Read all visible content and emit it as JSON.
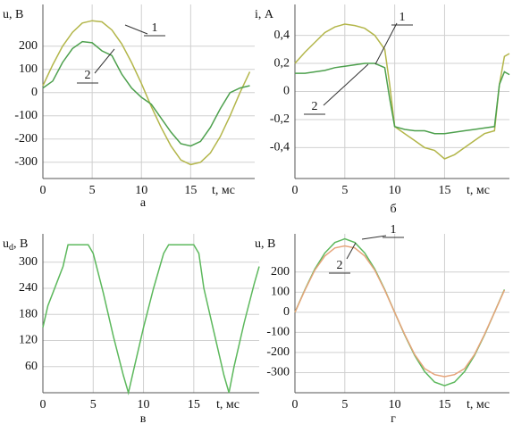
{
  "chart_data": [
    {
      "type": "line",
      "ylabel": "u, В",
      "xlabel": "t, мс",
      "caption": "а",
      "x": [
        0,
        1,
        2,
        3,
        4,
        5,
        6,
        7,
        8,
        9,
        10,
        11,
        12,
        13,
        14,
        15,
        16,
        17,
        18,
        19,
        20,
        21
      ],
      "series": [
        {
          "name": "1",
          "color": "#b3b64a",
          "values": [
            30,
            120,
            200,
            260,
            300,
            310,
            305,
            270,
            210,
            130,
            40,
            -60,
            -150,
            -230,
            -290,
            -310,
            -300,
            -260,
            -190,
            -100,
            0,
            90
          ]
        },
        {
          "name": "2",
          "color": "#4da04d",
          "values": [
            20,
            50,
            130,
            190,
            220,
            215,
            180,
            160,
            80,
            20,
            -20,
            -50,
            -110,
            -170,
            -220,
            -230,
            -210,
            -150,
            -70,
            0,
            20,
            30
          ]
        }
      ],
      "xlim": [
        0,
        21.5
      ],
      "xticks": [
        0,
        5,
        10,
        15
      ],
      "ylim": [
        -370,
        380
      ],
      "yticks": [
        -300,
        -200,
        -100,
        0,
        100,
        200
      ],
      "grid": true
    },
    {
      "type": "line",
      "ylabel": "i, А",
      "xlabel": "t, мс",
      "caption": "б",
      "x": [
        0,
        1,
        2,
        3,
        4,
        5,
        6,
        7,
        8,
        9,
        9.5,
        10,
        11,
        12,
        13,
        14,
        15,
        16,
        17,
        18,
        19,
        20,
        20.5,
        21,
        21.5
      ],
      "series": [
        {
          "name": "1",
          "color": "#b3b64a",
          "values": [
            0.2,
            0.28,
            0.35,
            0.42,
            0.46,
            0.48,
            0.47,
            0.45,
            0.4,
            0.3,
            0.05,
            -0.25,
            -0.3,
            -0.35,
            -0.4,
            -0.42,
            -0.48,
            -0.45,
            -0.4,
            -0.35,
            -0.3,
            -0.28,
            0.05,
            0.25,
            0.27
          ]
        },
        {
          "name": "2",
          "color": "#4da04d",
          "values": [
            0.13,
            0.13,
            0.14,
            0.15,
            0.17,
            0.18,
            0.19,
            0.2,
            0.2,
            0.17,
            -0.05,
            -0.25,
            -0.27,
            -0.28,
            -0.28,
            -0.3,
            -0.3,
            -0.29,
            -0.28,
            -0.27,
            -0.26,
            -0.25,
            0.05,
            0.14,
            0.12
          ]
        }
      ],
      "xlim": [
        0,
        21.5
      ],
      "xticks": [
        0,
        5,
        10,
        15
      ],
      "ylim": [
        -0.62,
        0.62
      ],
      "yticks": [
        {
          "value": -0.4,
          "label": "-0,4"
        },
        {
          "value": -0.2,
          "label": "-0,2"
        },
        0,
        {
          "value": 0.2,
          "label": "0,2"
        },
        {
          "value": 0.4,
          "label": "0,4"
        }
      ],
      "grid": true
    },
    {
      "type": "line",
      "ylabel": "u",
      "ylabel_subscript": "d",
      "ylabel_unit": ", В",
      "xlabel": "t, мс",
      "caption": "в",
      "x": [
        0,
        0.5,
        1,
        2,
        2.5,
        4.5,
        5,
        6,
        7,
        8,
        8.5,
        9,
        10,
        11,
        12,
        12.5,
        15,
        15.5,
        16,
        17,
        18,
        18.5,
        19,
        20,
        21,
        21.5
      ],
      "series": [
        {
          "color": "#5cb85c",
          "values": [
            150,
            200,
            230,
            290,
            340,
            340,
            320,
            230,
            130,
            40,
            0,
            50,
            150,
            240,
            320,
            340,
            340,
            320,
            240,
            140,
            40,
            0,
            60,
            160,
            250,
            290
          ]
        }
      ],
      "xlim": [
        0,
        21.5
      ],
      "xticks": [
        0,
        5,
        10,
        15
      ],
      "ylim": [
        0,
        365
      ],
      "yticks": [
        60,
        120,
        180,
        240,
        300
      ],
      "grid": true
    },
    {
      "type": "line",
      "ylabel": "u, В",
      "xlabel": "t, мс",
      "caption": "г",
      "x": [
        0,
        1,
        2,
        3,
        4,
        5,
        6,
        7,
        8,
        9,
        10,
        11,
        12,
        13,
        14,
        15,
        16,
        17,
        18,
        19,
        20,
        21
      ],
      "series": [
        {
          "name": "1",
          "color": "#5cb85c",
          "values": [
            0,
            113,
            215,
            295,
            347,
            365,
            347,
            295,
            215,
            113,
            0,
            -113,
            -215,
            -295,
            -347,
            -365,
            -347,
            -295,
            -215,
            -113,
            0,
            113
          ]
        },
        {
          "name": "2",
          "color": "#e6a47a",
          "values": [
            0,
            110,
            210,
            280,
            320,
            330,
            320,
            280,
            210,
            110,
            0,
            -110,
            -210,
            -280,
            -310,
            -320,
            -310,
            -280,
            -210,
            -110,
            0,
            110
          ]
        }
      ],
      "xlim": [
        0,
        21.5
      ],
      "xticks": [
        0,
        5,
        10,
        15
      ],
      "ylim": [
        -400,
        390
      ],
      "yticks": [
        -300,
        -200,
        -100,
        0,
        100,
        200
      ],
      "grid": true
    }
  ]
}
